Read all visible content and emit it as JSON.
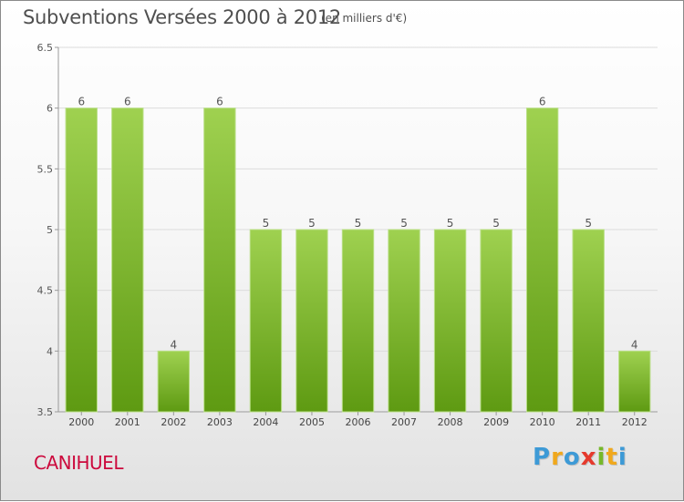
{
  "header": {
    "title": "Subventions Versées 2000 à 2012",
    "subtitle": "(en milliers d'€)"
  },
  "footer": {
    "town": "CANIHUEL",
    "brand_letters": [
      "P",
      "r",
      "o",
      "x",
      "i",
      "t",
      "i"
    ],
    "brand_colors": [
      "#3d9ad6",
      "#f0a81d",
      "#3d9ad6",
      "#e53a2d",
      "#76b82a",
      "#f0a81d",
      "#3d9ad6"
    ]
  },
  "chart_data": {
    "type": "bar",
    "categories": [
      "2000",
      "2001",
      "2002",
      "2003",
      "2004",
      "2005",
      "2006",
      "2007",
      "2008",
      "2009",
      "2010",
      "2011",
      "2012"
    ],
    "values": [
      6,
      6,
      4,
      6,
      5,
      5,
      5,
      5,
      5,
      5,
      6,
      5,
      4
    ],
    "data_labels": [
      "6",
      "6",
      "4",
      "6",
      "5",
      "5",
      "5",
      "5",
      "5",
      "5",
      "6",
      "5",
      "4"
    ],
    "ylim": [
      3.5,
      6.5
    ],
    "yticks": [
      3.5,
      4,
      4.5,
      5,
      5.5,
      6,
      6.5
    ],
    "ytick_labels": [
      "3.5",
      "4",
      "4.5",
      "5",
      "5.5",
      "6",
      "6.5"
    ],
    "grid": "horizontal",
    "bar_color_top": "#9fd150",
    "bar_color_bottom": "#5e9a12"
  }
}
